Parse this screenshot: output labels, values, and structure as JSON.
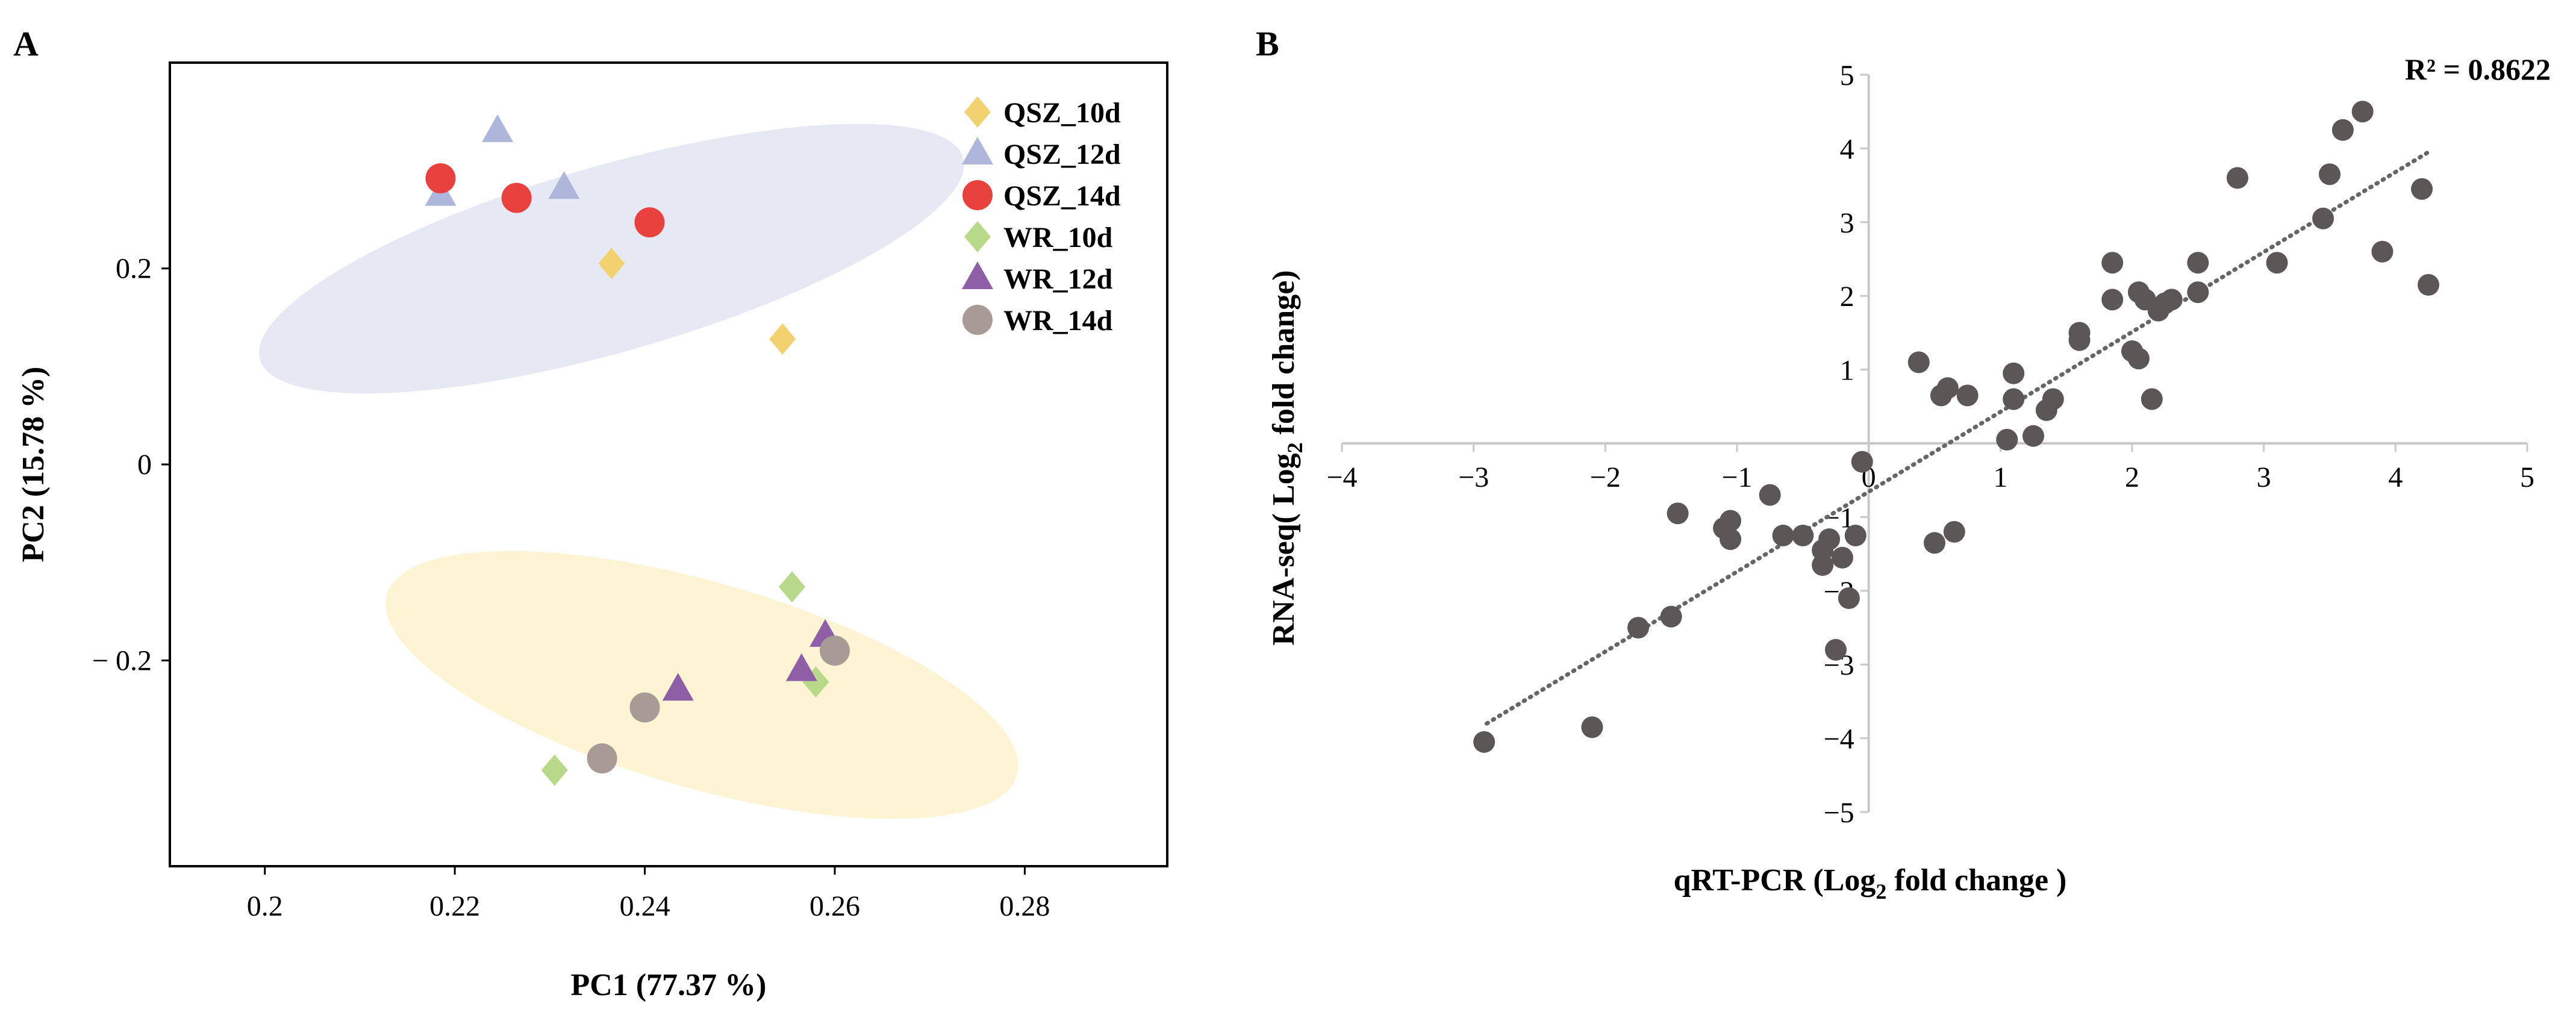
{
  "chart_data": [
    {
      "type": "scatter",
      "panel_label": "A",
      "xlabel": "PC1 (77.37 %)",
      "ylabel": "PC2 (15.78 %)",
      "xlim": [
        0.19,
        0.295
      ],
      "ylim": [
        -0.41,
        0.41
      ],
      "xticks": [
        0.2,
        0.22,
        0.24,
        0.26,
        0.28
      ],
      "xtick_labels": [
        "0.2",
        "0.22",
        "0.24",
        "0.26",
        "0.28"
      ],
      "yticks": [
        0.2,
        0,
        -0.2
      ],
      "ytick_labels": [
        "0.2",
        "0",
        "− 0.2"
      ],
      "grid": false,
      "legend_position": "top-right",
      "series": [
        {
          "name": "QSZ_10d",
          "marker": "diamond",
          "color": "#F2D270",
          "points": [
            [
              0.2365,
              0.205
            ],
            [
              0.2545,
              0.128
            ]
          ]
        },
        {
          "name": "QSZ_12d",
          "marker": "triangle",
          "color": "#AEB6DC",
          "points": [
            [
              0.2245,
              0.34
            ],
            [
              0.2185,
              0.275
            ],
            [
              0.2315,
              0.282
            ]
          ]
        },
        {
          "name": "QSZ_14d",
          "marker": "circle",
          "color": "#E8413E",
          "points": [
            [
              0.2185,
              0.292
            ],
            [
              0.2265,
              0.272
            ],
            [
              0.2405,
              0.247
            ]
          ]
        },
        {
          "name": "WR_10d",
          "marker": "diamond",
          "color": "#B9D98A",
          "points": [
            [
              0.2555,
              -0.125
            ],
            [
              0.258,
              -0.222
            ],
            [
              0.2305,
              -0.312
            ]
          ]
        },
        {
          "name": "WR_12d",
          "marker": "triangle",
          "color": "#8E5FA6",
          "points": [
            [
              0.259,
              -0.175
            ],
            [
              0.2565,
              -0.21
            ],
            [
              0.2435,
              -0.23
            ]
          ]
        },
        {
          "name": "WR_14d",
          "marker": "circle",
          "color": "#A89A94",
          "points": [
            [
              0.26,
              -0.19
            ],
            [
              0.24,
              -0.248
            ],
            [
              0.2355,
              -0.3
            ]
          ]
        }
      ],
      "ellipses": [
        {
          "group": "QSZ",
          "color": "#E6E9F3",
          "center": [
            0.2365,
            0.21
          ],
          "rx": 0.0385,
          "ry": 0.095,
          "rotation_deg": 16
        },
        {
          "group": "WR",
          "color": "#FDF4D3",
          "center": [
            0.246,
            -0.225
          ],
          "rx": 0.0345,
          "ry": 0.105,
          "rotation_deg": -16
        }
      ]
    },
    {
      "type": "scatter",
      "panel_label": "B",
      "xlabel": "qRT-PCR (Log2 fold change )",
      "xlabel_parts": [
        "qRT-PCR (Log",
        "2",
        " fold change )"
      ],
      "ylabel": "RNA-seq( Log2 fold change)",
      "ylabel_parts": [
        "RNA-seq( Log",
        "2",
        " fold change)"
      ],
      "annotation": "R² = 0.8622",
      "xlim": [
        -4,
        5
      ],
      "ylim": [
        -5,
        5
      ],
      "xticks": [
        -4,
        -3,
        -2,
        -1,
        0,
        1,
        2,
        3,
        4,
        5
      ],
      "xtick_labels": [
        "−4",
        "−3",
        "−2",
        "−1",
        "0",
        "1",
        "2",
        "3",
        "4",
        "5"
      ],
      "yticks": [
        5,
        4,
        3,
        2,
        1,
        0,
        -1,
        -2,
        -3,
        -4,
        -5
      ],
      "ytick_labels": [
        "5",
        "4",
        "3",
        "2",
        "1",
        "0",
        "−1",
        "−2",
        "−3",
        "−4",
        "−5"
      ],
      "grid": false,
      "point_color": "#5B5756",
      "trendline": {
        "style": "dotted",
        "color": "#666666",
        "from": [
          -2.9,
          -3.8
        ],
        "to": [
          4.25,
          3.95
        ]
      },
      "x": [
        -2.92,
        -2.1,
        -1.75,
        -1.5,
        -1.45,
        -1.1,
        -1.05,
        -1.05,
        -0.75,
        -0.65,
        -0.5,
        -0.35,
        -0.35,
        -0.3,
        -0.25,
        -0.2,
        -0.15,
        -0.1,
        -0.05,
        0.5,
        0.55,
        0.6,
        0.38,
        0.65,
        0.75,
        1.05,
        1.1,
        1.1,
        1.25,
        1.35,
        1.4,
        1.6,
        1.6,
        1.85,
        1.85,
        2.0,
        2.05,
        2.05,
        2.1,
        2.15,
        2.2,
        2.25,
        2.3,
        2.5,
        2.5,
        2.8,
        3.1,
        3.45,
        3.5,
        3.6,
        3.75,
        3.9,
        4.2,
        4.25
      ],
      "y": [
        -4.05,
        -3.85,
        -2.5,
        -2.35,
        -0.95,
        -1.15,
        -1.05,
        -1.3,
        -0.7,
        -1.25,
        -1.25,
        -1.65,
        -1.45,
        -1.3,
        -2.8,
        -1.55,
        -2.1,
        -1.25,
        -0.25,
        -1.35,
        0.65,
        0.75,
        1.1,
        -1.2,
        0.65,
        0.05,
        0.6,
        0.95,
        0.1,
        0.45,
        0.6,
        1.4,
        1.5,
        1.95,
        2.45,
        1.25,
        1.15,
        2.05,
        1.95,
        0.6,
        1.8,
        1.9,
        1.95,
        2.05,
        2.45,
        3.6,
        2.45,
        3.05,
        3.65,
        4.25,
        4.5,
        2.6,
        3.45,
        2.15
      ]
    }
  ]
}
